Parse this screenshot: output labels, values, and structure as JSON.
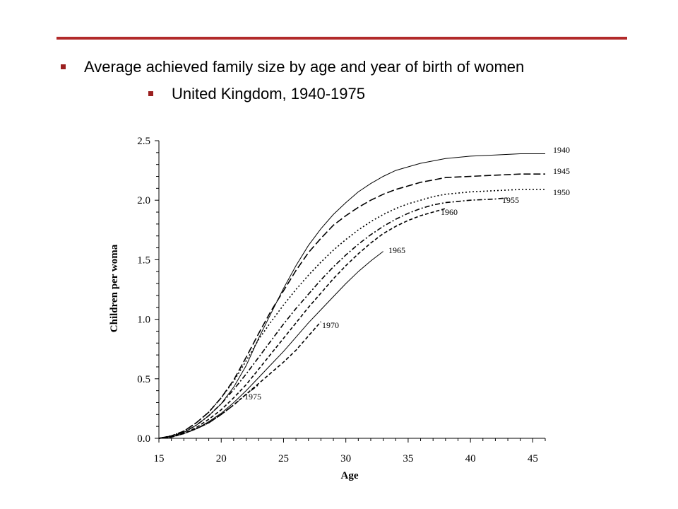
{
  "bullets": {
    "line1": "Average achieved family size by age and year of birth of women",
    "line2": "United Kingdom, 1940-1975"
  },
  "colors": {
    "accent_rule": "#b22a2a",
    "bullet": "#9b1f1f",
    "ink": "#000000"
  },
  "chart_data": {
    "type": "line",
    "title": "",
    "xlabel": "Age",
    "ylabel": "Children per woma",
    "xlim": [
      15,
      46
    ],
    "ylim": [
      0,
      2.5
    ],
    "xticks": [
      15,
      20,
      25,
      30,
      35,
      40,
      45
    ],
    "yticks": [
      0.0,
      0.5,
      1.0,
      1.5,
      2.0,
      2.5
    ],
    "ytick_labels": [
      "0.0",
      "0.5",
      "1.0",
      "1.5",
      "2.0",
      "2.5"
    ],
    "grid": false,
    "series": [
      {
        "name": "1940",
        "style": "solid",
        "points": [
          [
            15,
            0
          ],
          [
            16,
            0.02
          ],
          [
            17,
            0.05
          ],
          [
            18,
            0.11
          ],
          [
            19,
            0.19
          ],
          [
            20,
            0.29
          ],
          [
            21,
            0.43
          ],
          [
            22,
            0.61
          ],
          [
            23,
            0.84
          ],
          [
            24,
            1.05
          ],
          [
            25,
            1.26
          ],
          [
            26,
            1.45
          ],
          [
            27,
            1.62
          ],
          [
            28,
            1.76
          ],
          [
            29,
            1.88
          ],
          [
            30,
            1.98
          ],
          [
            31,
            2.07
          ],
          [
            32,
            2.14
          ],
          [
            33,
            2.2
          ],
          [
            34,
            2.25
          ],
          [
            35,
            2.28
          ],
          [
            36,
            2.31
          ],
          [
            37,
            2.33
          ],
          [
            38,
            2.35
          ],
          [
            40,
            2.37
          ],
          [
            42,
            2.38
          ],
          [
            44,
            2.39
          ],
          [
            46,
            2.39
          ]
        ]
      },
      {
        "name": "1945",
        "style": "longdash",
        "points": [
          [
            15,
            0
          ],
          [
            16,
            0.02
          ],
          [
            17,
            0.06
          ],
          [
            18,
            0.13
          ],
          [
            19,
            0.22
          ],
          [
            20,
            0.34
          ],
          [
            21,
            0.49
          ],
          [
            22,
            0.68
          ],
          [
            23,
            0.88
          ],
          [
            24,
            1.07
          ],
          [
            25,
            1.24
          ],
          [
            26,
            1.41
          ],
          [
            27,
            1.56
          ],
          [
            28,
            1.68
          ],
          [
            29,
            1.79
          ],
          [
            30,
            1.87
          ],
          [
            31,
            1.94
          ],
          [
            32,
            2.0
          ],
          [
            33,
            2.05
          ],
          [
            34,
            2.09
          ],
          [
            35,
            2.12
          ],
          [
            36,
            2.15
          ],
          [
            37,
            2.17
          ],
          [
            38,
            2.19
          ],
          [
            40,
            2.2
          ],
          [
            42,
            2.21
          ],
          [
            44,
            2.22
          ],
          [
            46,
            2.22
          ]
        ]
      },
      {
        "name": "1950",
        "style": "dotted",
        "points": [
          [
            15,
            0
          ],
          [
            16,
            0.02
          ],
          [
            17,
            0.06
          ],
          [
            18,
            0.13
          ],
          [
            19,
            0.22
          ],
          [
            20,
            0.34
          ],
          [
            21,
            0.48
          ],
          [
            22,
            0.65
          ],
          [
            23,
            0.83
          ],
          [
            24,
            0.98
          ],
          [
            25,
            1.12
          ],
          [
            26,
            1.25
          ],
          [
            27,
            1.37
          ],
          [
            28,
            1.48
          ],
          [
            29,
            1.58
          ],
          [
            30,
            1.67
          ],
          [
            31,
            1.75
          ],
          [
            32,
            1.82
          ],
          [
            33,
            1.88
          ],
          [
            34,
            1.93
          ],
          [
            35,
            1.97
          ],
          [
            36,
            2.0
          ],
          [
            37,
            2.03
          ],
          [
            38,
            2.05
          ],
          [
            40,
            2.07
          ],
          [
            42,
            2.08
          ],
          [
            44,
            2.09
          ],
          [
            46,
            2.09
          ]
        ]
      },
      {
        "name": "1955",
        "style": "dashdot",
        "points": [
          [
            15,
            0
          ],
          [
            16,
            0.02
          ],
          [
            17,
            0.05
          ],
          [
            18,
            0.11
          ],
          [
            19,
            0.19
          ],
          [
            20,
            0.29
          ],
          [
            21,
            0.41
          ],
          [
            22,
            0.54
          ],
          [
            23,
            0.68
          ],
          [
            24,
            0.82
          ],
          [
            25,
            0.96
          ],
          [
            26,
            1.09
          ],
          [
            27,
            1.21
          ],
          [
            28,
            1.33
          ],
          [
            29,
            1.44
          ],
          [
            30,
            1.54
          ],
          [
            31,
            1.63
          ],
          [
            32,
            1.71
          ],
          [
            33,
            1.78
          ],
          [
            34,
            1.84
          ],
          [
            35,
            1.89
          ],
          [
            36,
            1.93
          ],
          [
            37,
            1.96
          ],
          [
            38,
            1.98
          ],
          [
            40,
            2.0
          ],
          [
            42,
            2.01
          ],
          [
            43,
            2.02
          ]
        ]
      },
      {
        "name": "1960",
        "style": "dash",
        "points": [
          [
            15,
            0
          ],
          [
            16,
            0.02
          ],
          [
            17,
            0.04
          ],
          [
            18,
            0.09
          ],
          [
            19,
            0.16
          ],
          [
            20,
            0.24
          ],
          [
            21,
            0.34
          ],
          [
            22,
            0.45
          ],
          [
            23,
            0.58
          ],
          [
            24,
            0.71
          ],
          [
            25,
            0.84
          ],
          [
            26,
            0.97
          ],
          [
            27,
            1.1
          ],
          [
            28,
            1.22
          ],
          [
            29,
            1.34
          ],
          [
            30,
            1.45
          ],
          [
            31,
            1.55
          ],
          [
            32,
            1.64
          ],
          [
            33,
            1.72
          ],
          [
            34,
            1.78
          ],
          [
            35,
            1.83
          ],
          [
            36,
            1.87
          ],
          [
            37,
            1.9
          ],
          [
            38,
            1.93
          ]
        ]
      },
      {
        "name": "1965",
        "style": "solid",
        "points": [
          [
            15,
            0
          ],
          [
            16,
            0.01
          ],
          [
            17,
            0.04
          ],
          [
            18,
            0.08
          ],
          [
            19,
            0.14
          ],
          [
            20,
            0.21
          ],
          [
            21,
            0.3
          ],
          [
            22,
            0.4
          ],
          [
            23,
            0.51
          ],
          [
            24,
            0.62
          ],
          [
            25,
            0.73
          ],
          [
            26,
            0.85
          ],
          [
            27,
            0.97
          ],
          [
            28,
            1.08
          ],
          [
            29,
            1.19
          ],
          [
            30,
            1.3
          ],
          [
            31,
            1.4
          ],
          [
            32,
            1.49
          ],
          [
            33,
            1.57
          ]
        ]
      },
      {
        "name": "1970",
        "style": "dash",
        "points": [
          [
            15,
            0
          ],
          [
            16,
            0.01
          ],
          [
            17,
            0.04
          ],
          [
            18,
            0.08
          ],
          [
            19,
            0.13
          ],
          [
            20,
            0.2
          ],
          [
            21,
            0.28
          ],
          [
            22,
            0.37
          ],
          [
            23,
            0.46
          ],
          [
            24,
            0.55
          ],
          [
            25,
            0.64
          ],
          [
            26,
            0.74
          ],
          [
            27,
            0.86
          ],
          [
            28,
            0.98
          ]
        ]
      },
      {
        "name": "1975",
        "style": "dashdot",
        "points": [
          [
            15,
            0
          ],
          [
            16,
            0.01
          ],
          [
            17,
            0.04
          ],
          [
            18,
            0.08
          ],
          [
            19,
            0.13
          ],
          [
            20,
            0.2
          ],
          [
            21,
            0.28
          ],
          [
            22,
            0.37
          ],
          [
            23,
            0.45
          ]
        ]
      }
    ],
    "annotations": [
      "1940",
      "1945",
      "1950",
      "1955",
      "1960",
      "1965",
      "1970",
      "1975"
    ]
  }
}
